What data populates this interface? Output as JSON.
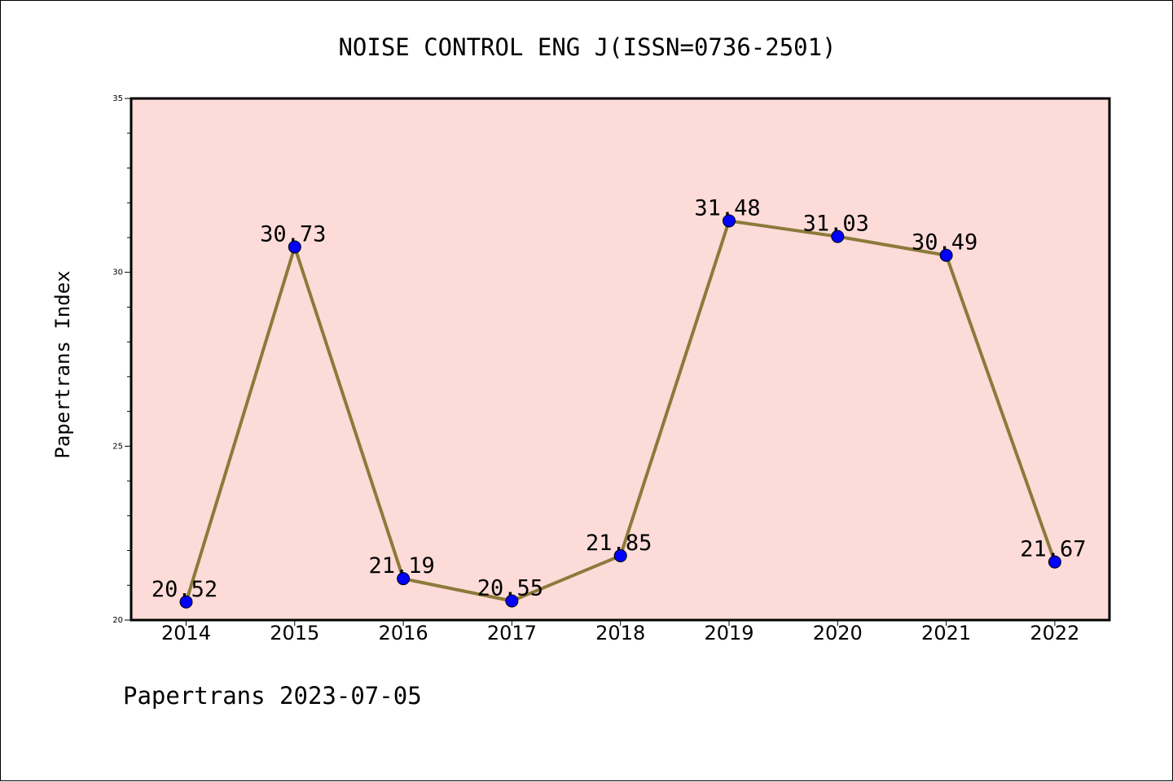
{
  "chart_data": {
    "type": "line",
    "title": "NOISE CONTROL ENG J(ISSN=0736-2501)",
    "ylabel": "Papertrans Index",
    "xlabel": "",
    "footer": "Papertrans 2023-07-05",
    "categories": [
      "2014",
      "2015",
      "2016",
      "2017",
      "2018",
      "2019",
      "2020",
      "2021",
      "2022"
    ],
    "series": [
      {
        "values": [
          20.52,
          30.73,
          21.19,
          20.55,
          21.85,
          31.48,
          31.03,
          30.49,
          21.67
        ],
        "labels": [
          "20.52",
          "30.73",
          "21.19",
          "20.55",
          "21.85",
          "31.48",
          "31.03",
          "30.49",
          "21.67"
        ]
      }
    ],
    "ylim": [
      20,
      35
    ],
    "yticks": [
      "20",
      "25",
      "30",
      "35"
    ],
    "grid": false,
    "colors": {
      "plot_background": "#fddbd8",
      "line": "#8c7a3a",
      "marker": "#0000ff",
      "axis": "#000000"
    }
  }
}
